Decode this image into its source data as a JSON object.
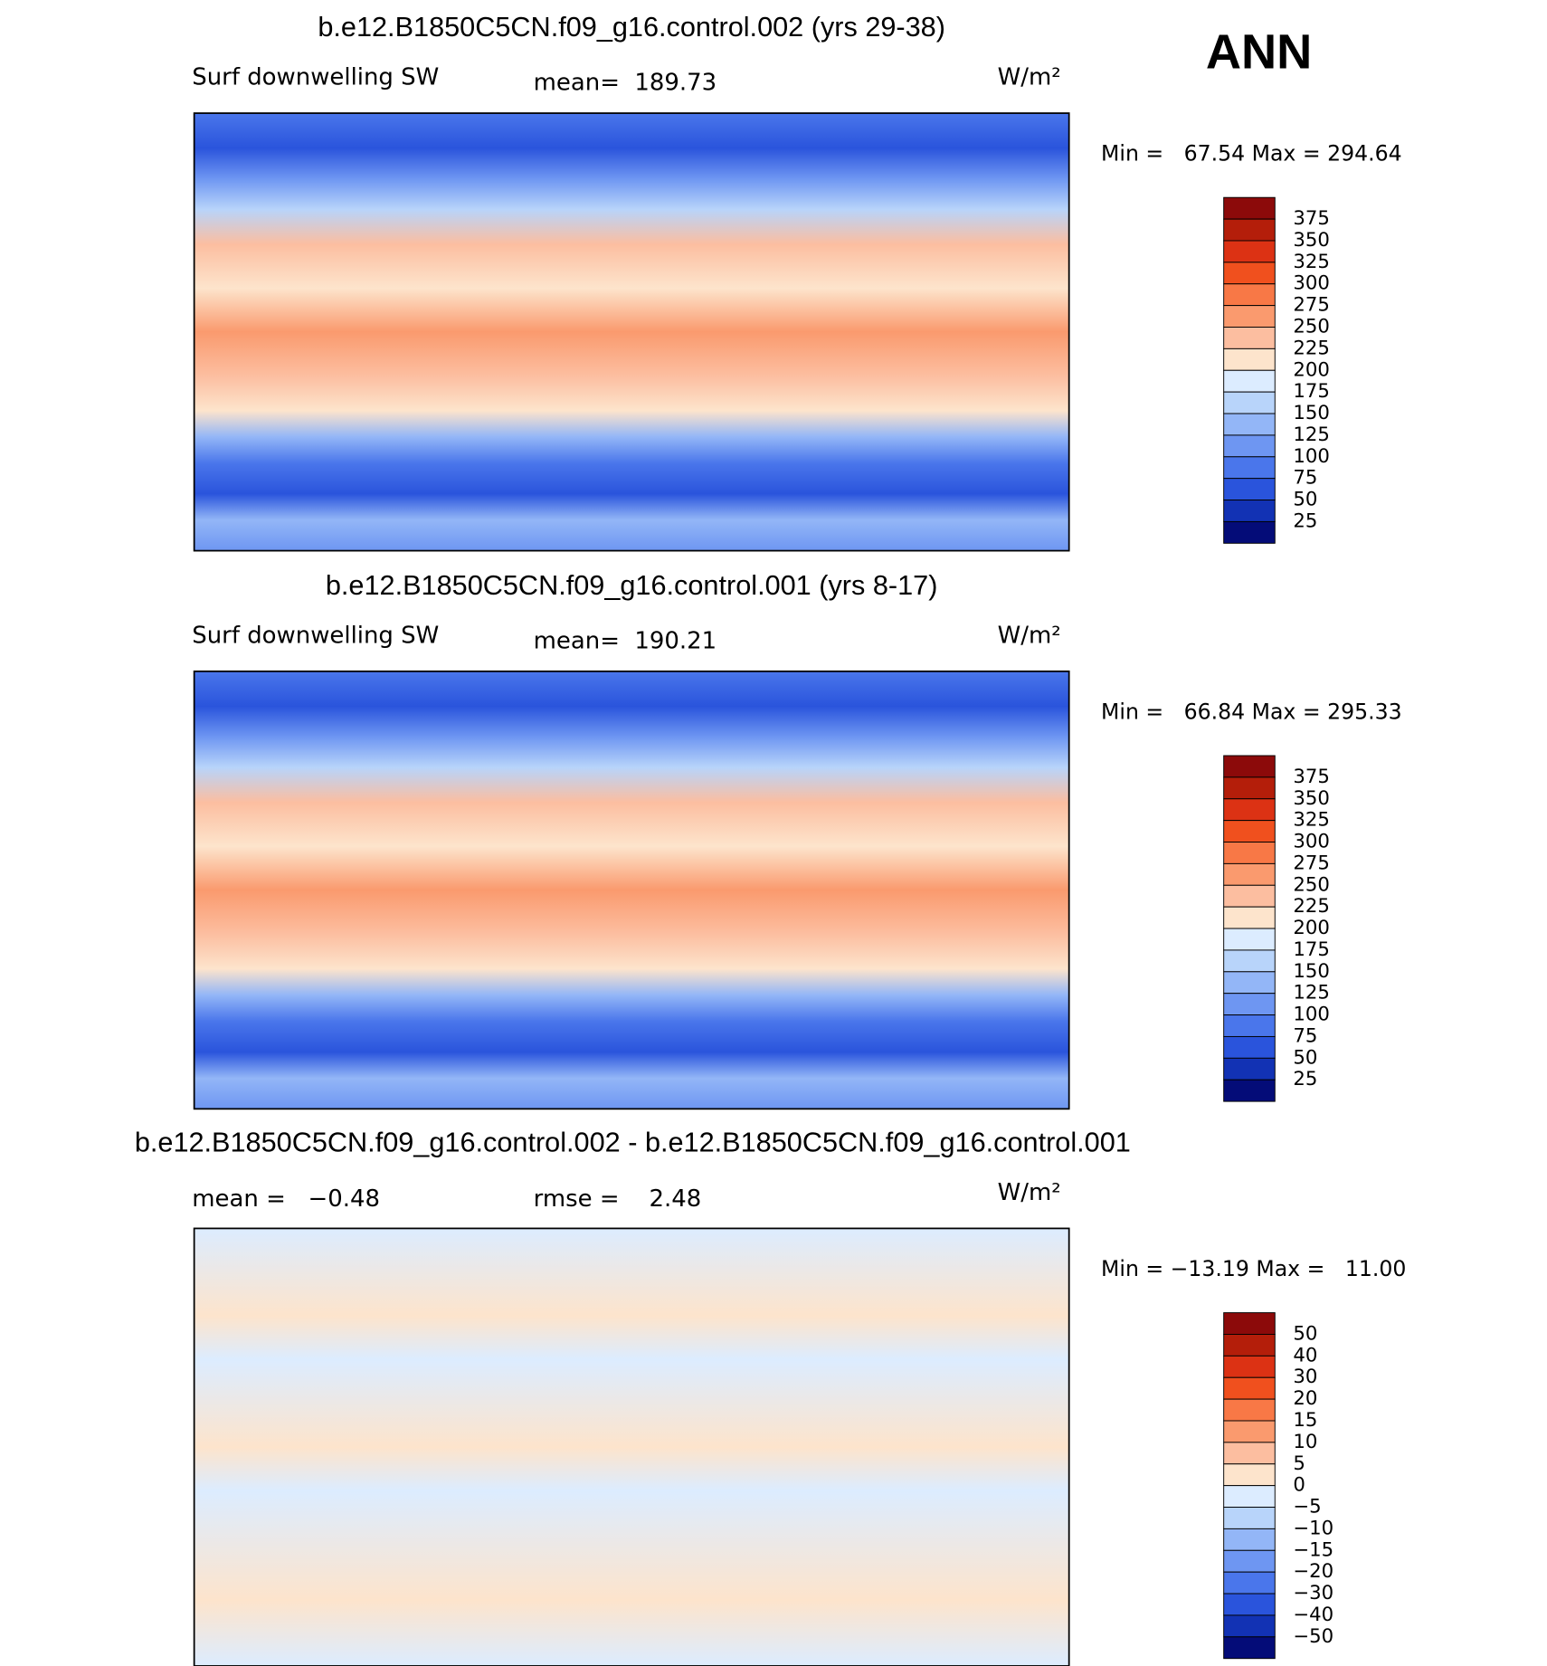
{
  "figure_label": "ANN",
  "panels": [
    {
      "title": "b.e12.B1850C5CN.f09_g16.control.002 (yrs 29-38)",
      "left_label": "Surf downwelling SW",
      "center_label": "mean=  189.73",
      "units": "W/m²",
      "stats": "Min =   67.54 Max = 294.64",
      "colorbar": {
        "labels": [
          "375",
          "350",
          "325",
          "300",
          "275",
          "250",
          "225",
          "200",
          "175",
          "150",
          "125",
          "100",
          "75",
          "50",
          "25"
        ],
        "colors": [
          "#8c0a0a",
          "#b41e0a",
          "#dc3214",
          "#f0501e",
          "#f87846",
          "#fa9a6e",
          "#fcbea0",
          "#fde4cc",
          "#dcecff",
          "#b8d4fa",
          "#93b6f7",
          "#6e96f2",
          "#4a76eb",
          "#2a54dc",
          "#1232b4",
          "#040c78"
        ]
      }
    },
    {
      "title": "b.e12.B1850C5CN.f09_g16.control.001 (yrs 8-17)",
      "left_label": "Surf downwelling SW",
      "center_label": "mean=  190.21",
      "units": "W/m²",
      "stats": "Min =   66.84 Max = 295.33",
      "colorbar": {
        "labels": [
          "375",
          "350",
          "325",
          "300",
          "275",
          "250",
          "225",
          "200",
          "175",
          "150",
          "125",
          "100",
          "75",
          "50",
          "25"
        ],
        "colors": [
          "#8c0a0a",
          "#b41e0a",
          "#dc3214",
          "#f0501e",
          "#f87846",
          "#fa9a6e",
          "#fcbea0",
          "#fde4cc",
          "#dcecff",
          "#b8d4fa",
          "#93b6f7",
          "#6e96f2",
          "#4a76eb",
          "#2a54dc",
          "#1232b4",
          "#040c78"
        ]
      }
    },
    {
      "title": "b.e12.B1850C5CN.f09_g16.control.002 - b.e12.B1850C5CN.f09_g16.control.001",
      "left_label": "mean =   −0.48",
      "center_label": "rmse =    2.48",
      "units": "W/m²",
      "stats": "Min = −13.19 Max =   11.00",
      "colorbar": {
        "labels": [
          "50",
          "40",
          "30",
          "20",
          "15",
          "10",
          "5",
          "0",
          "−5",
          "−10",
          "−15",
          "−20",
          "−30",
          "−40",
          "−50"
        ],
        "colors": [
          "#8c0a0a",
          "#b41e0a",
          "#dc3214",
          "#f0501e",
          "#f87846",
          "#fa9a6e",
          "#fcbea0",
          "#fde4cc",
          "#dcecff",
          "#b8d4fa",
          "#93b6f7",
          "#6e96f2",
          "#4a76eb",
          "#2a54dc",
          "#1232b4",
          "#040c78"
        ]
      }
    }
  ]
}
